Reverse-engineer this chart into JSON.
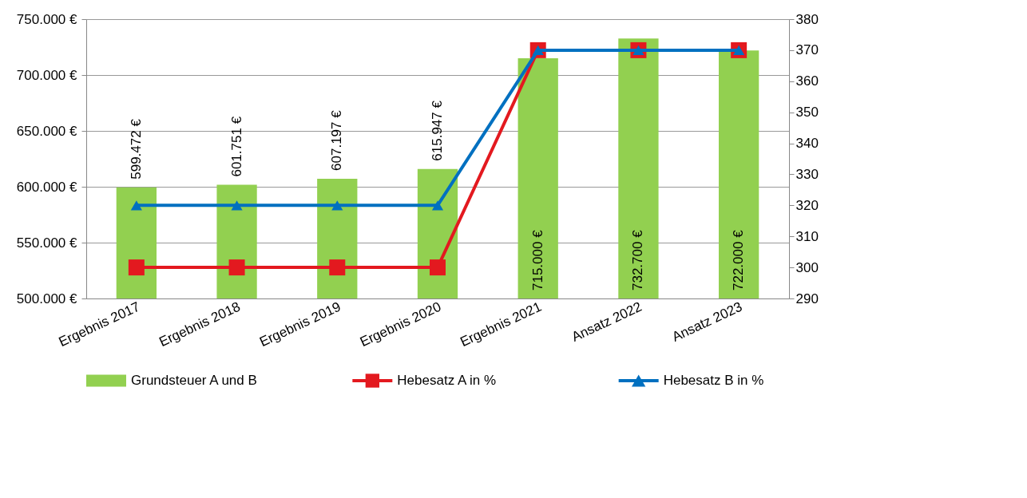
{
  "chart_data": {
    "type": "bar",
    "categories": [
      "Ergebnis 2017",
      "Ergebnis 2018",
      "Ergebnis 2019",
      "Ergebnis 2020",
      "Ergebnis 2021",
      "Ansatz 2022",
      "Ansatz 2023"
    ],
    "series": [
      {
        "name": "Grundsteuer A und B",
        "color": "#92d050",
        "values": [
          599472,
          601751,
          607197,
          615947,
          715000,
          732700,
          722000
        ],
        "value_labels": [
          "599.472 €",
          "601.751 €",
          "607.197 €",
          "615.947 €",
          "715.000 €",
          "732.700 €",
          "722.000 €"
        ]
      },
      {
        "name": "Hebesatz A in %",
        "type": "line",
        "axis": "y2",
        "color": "#e3191f",
        "marker": "square",
        "values": [
          300,
          300,
          300,
          300,
          370,
          370,
          370
        ]
      },
      {
        "name": "Hebesatz B in %",
        "type": "line",
        "axis": "y2",
        "color": "#0070c0",
        "marker": "triangle",
        "values": [
          320,
          320,
          320,
          320,
          370,
          370,
          370
        ]
      }
    ],
    "ylim": [
      500000,
      750000
    ],
    "yticks": [
      {
        "value": 500000,
        "label": "500.000 €"
      },
      {
        "value": 550000,
        "label": "550.000 €"
      },
      {
        "value": 600000,
        "label": "600.000 €"
      },
      {
        "value": 650000,
        "label": "650.000 €"
      },
      {
        "value": 700000,
        "label": "700.000 €"
      },
      {
        "value": 750000,
        "label": "750.000 €"
      }
    ],
    "y2lim": [
      290,
      380
    ],
    "y2ticks": [
      290,
      300,
      310,
      320,
      330,
      340,
      350,
      360,
      370,
      380
    ],
    "grid": "y",
    "legend": "bottom",
    "line_style": "solid"
  }
}
